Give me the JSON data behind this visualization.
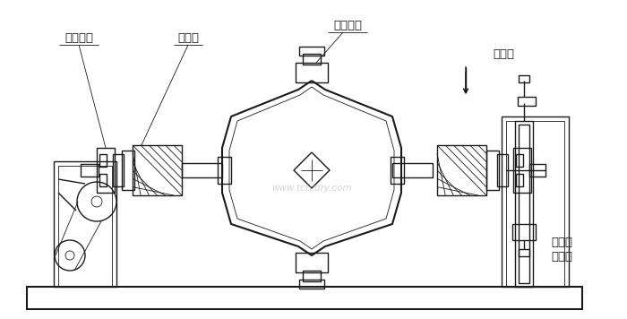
{
  "bg_color": "#ffffff",
  "line_color": "#1a1a1a",
  "lw": 1.0,
  "lw_thin": 0.6,
  "lw_thick": 1.5,
  "labels": {
    "left_rotary": "旋转接头",
    "seal_seat": "密封座",
    "top_rotary": "旋转接头",
    "heat_source": "进热源",
    "condenser": "冷凝器\n或回流"
  },
  "watermark": "www.tctcdry.com",
  "label_fs": 9.5
}
